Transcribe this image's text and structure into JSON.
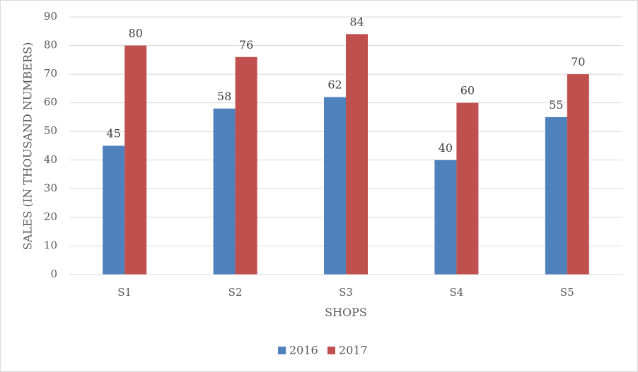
{
  "chart_data": {
    "type": "bar",
    "title": "",
    "xlabel": "SHOPS",
    "ylabel": "SALES (IN THOUSAND NUMBERS)",
    "categories": [
      "S1",
      "S2",
      "S3",
      "S4",
      "S5"
    ],
    "series": [
      {
        "name": "2016",
        "values": [
          45,
          58,
          62,
          40,
          55
        ],
        "color": "#4f81bd"
      },
      {
        "name": "2017",
        "values": [
          80,
          76,
          84,
          60,
          70
        ],
        "color": "#c0504d"
      }
    ],
    "ylim": [
      0,
      90
    ],
    "yticks": [
      0,
      10,
      20,
      30,
      40,
      50,
      60,
      70,
      80,
      90
    ],
    "grid": true,
    "legend_position": "bottom",
    "data_labels": true
  }
}
